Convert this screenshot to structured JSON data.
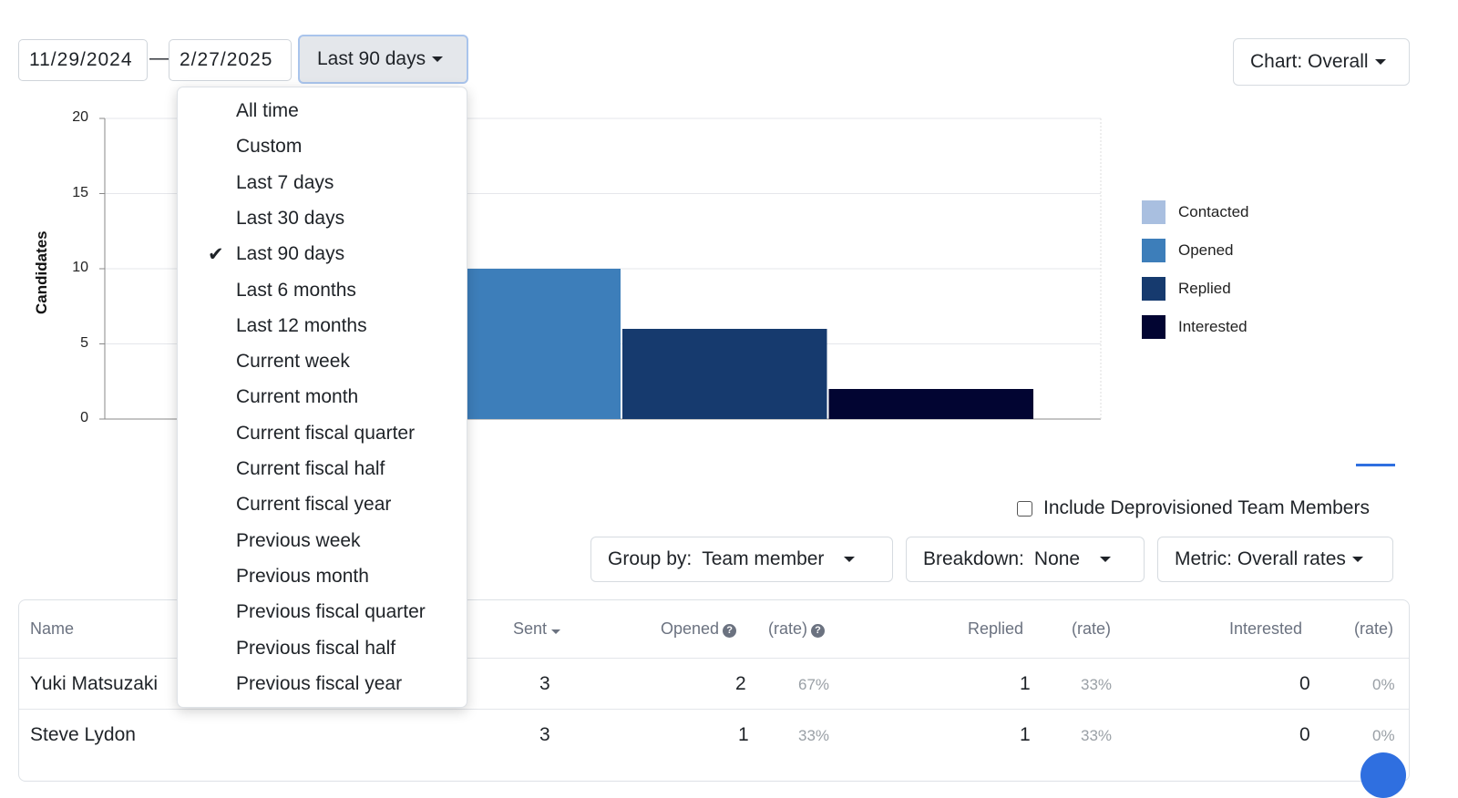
{
  "dates": {
    "start": "11/29/2024",
    "separator": "—",
    "end": "2/27/2025"
  },
  "range_button": {
    "label": "Last 90 days"
  },
  "chart_button": {
    "label": "Chart: Overall"
  },
  "range_menu": {
    "selected_index": 4,
    "items": [
      "All time",
      "Custom",
      "Last 7 days",
      "Last 30 days",
      "Last 90 days",
      "Last 6 months",
      "Last 12 months",
      "Current week",
      "Current month",
      "Current fiscal quarter",
      "Current fiscal half",
      "Current fiscal year",
      "Previous week",
      "Previous month",
      "Previous fiscal quarter",
      "Previous fiscal half",
      "Previous fiscal year"
    ]
  },
  "chart_data": {
    "type": "bar",
    "ylabel": "Candidates",
    "ylim": [
      0,
      20
    ],
    "yticks": [
      "0",
      "5",
      "10",
      "15",
      "20"
    ],
    "categories": [
      "Contacted",
      "Opened",
      "Replied",
      "Interested"
    ],
    "values": [
      null,
      10,
      6,
      2
    ],
    "colors": [
      "#a9bfe0",
      "#3d7eba",
      "#163a6e",
      "#020532"
    ],
    "grid": true,
    "legend_position": "right"
  },
  "legend": [
    {
      "label": "Contacted",
      "color": "#a9bfe0"
    },
    {
      "label": "Opened",
      "color": "#3d7eba"
    },
    {
      "label": "Replied",
      "color": "#163a6e"
    },
    {
      "label": "Interested",
      "color": "#020532"
    }
  ],
  "include_deprovisioned": {
    "label": "Include Deprovisioned Team Members",
    "checked": false
  },
  "filters": {
    "group_by": {
      "label": "Group by:",
      "value": "Team member"
    },
    "breakdown": {
      "label": "Breakdown:",
      "value": "None"
    },
    "metric": {
      "label": "Metric: Overall rates"
    }
  },
  "table": {
    "headers": {
      "name": "Name",
      "sent": "Sent",
      "opened": "Opened",
      "opened_rate": "(rate)",
      "replied": "Replied",
      "replied_rate": "(rate)",
      "interested": "Interested",
      "interested_rate": "(rate)"
    },
    "rows": [
      {
        "name": "Yuki Matsuzaki",
        "sent": "3",
        "opened": "2",
        "opened_rate": "67%",
        "replied": "1",
        "replied_rate": "33%",
        "interested": "0",
        "interested_rate": "0%"
      },
      {
        "name": "Steve Lydon",
        "sent": "3",
        "opened": "1",
        "opened_rate": "33%",
        "replied": "1",
        "replied_rate": "33%",
        "interested": "0",
        "interested_rate": "0%"
      }
    ]
  }
}
